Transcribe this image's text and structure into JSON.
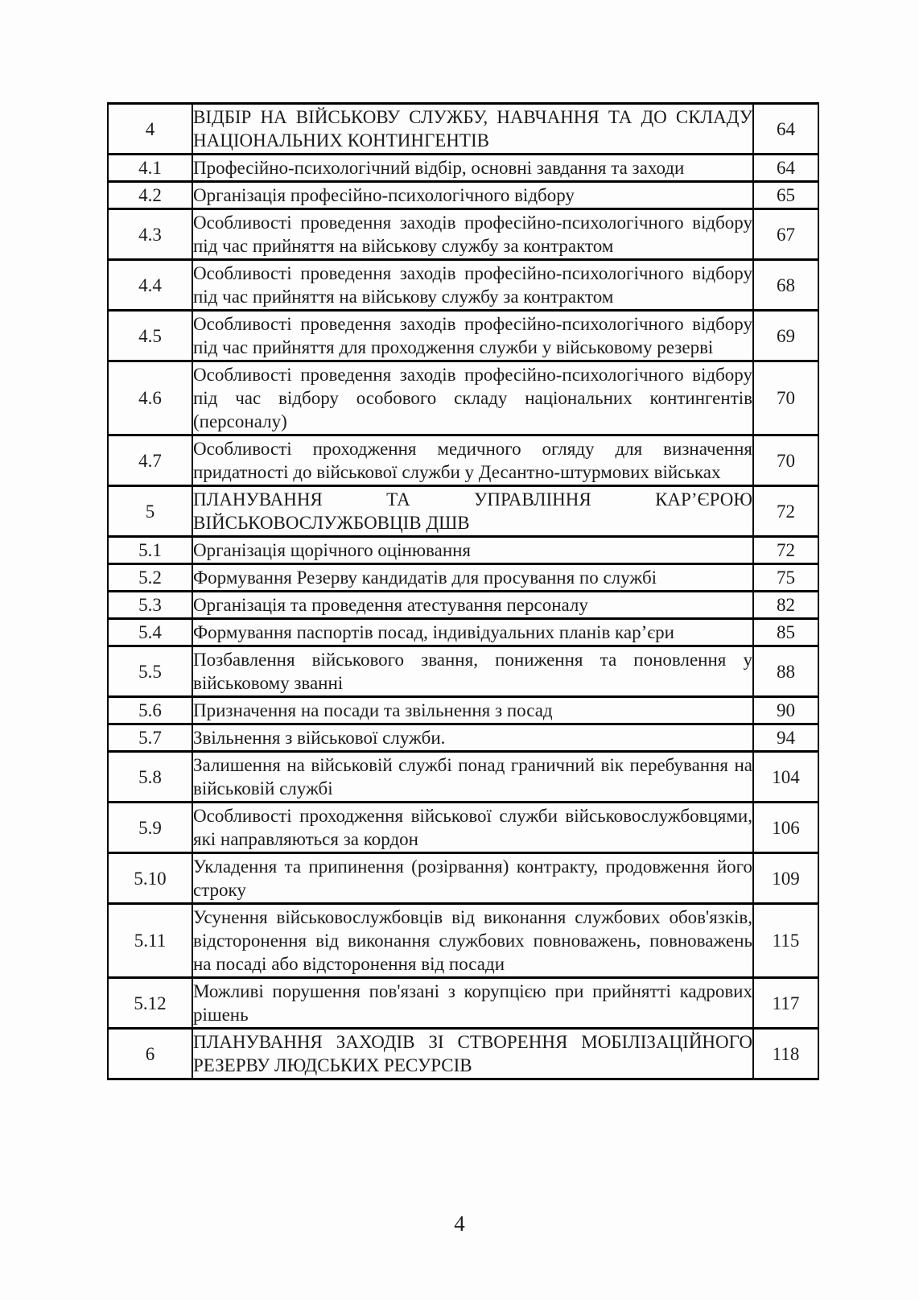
{
  "table": {
    "rows": [
      {
        "num": "4",
        "title": "ВІДБІР НА ВІЙСЬКОВУ СЛУЖБУ, НАВЧАННЯ ТА ДО СКЛАДУ НАЦІОНАЛЬНИХ КОНТИНГЕНТІВ",
        "page": "64"
      },
      {
        "num": "4.1",
        "title": "Професійно-психологічний відбір, основні завдання та заходи",
        "page": "64"
      },
      {
        "num": "4.2",
        "title": "Організація професійно-психологічного відбору",
        "page": "65"
      },
      {
        "num": "4.3",
        "title": "Особливості проведення заходів професійно-психологічного відбору під час прийняття на військову службу за контрактом",
        "page": "67"
      },
      {
        "num": "4.4",
        "title": "Особливості проведення заходів професійно-психологічного відбору під час прийняття на військову службу за контрактом",
        "page": "68"
      },
      {
        "num": "4.5",
        "title": "Особливості проведення заходів професійно-психологічного відбору під час прийняття для проходження служби у військовому резерві",
        "page": "69"
      },
      {
        "num": "4.6",
        "title": "Особливості проведення заходів професійно-психологічного відбору під час відбору особового складу національних контингентів (персоналу)",
        "page": "70"
      },
      {
        "num": "4.7",
        "title": "Особливості проходження медичного огляду для визначення придатності до військової служби у Десантно-штурмових військах",
        "page": "70"
      },
      {
        "num": "5",
        "title": "ПЛАНУВАННЯ ТА УПРАВЛІННЯ КАР’ЄРОЮ ВІЙСЬКОВОСЛУЖБОВЦІВ ДШВ",
        "page": "72"
      },
      {
        "num": "5.1",
        "title": "Організація щорічного оцінювання",
        "page": "72"
      },
      {
        "num": "5.2",
        "title": "Формування Резерву кандидатів для просування по службі",
        "page": "75"
      },
      {
        "num": "5.3",
        "title": "Організація та проведення атестування персоналу",
        "page": "82"
      },
      {
        "num": "5.4",
        "title": "Формування паспортів посад, індивідуальних планів кар’єри",
        "page": "85"
      },
      {
        "num": "5.5",
        "title": "Позбавлення військового звання, пониження та поновлення у військовому званні",
        "page": "88"
      },
      {
        "num": "5.6",
        "title": "Призначення на посади та звільнення з посад",
        "page": "90"
      },
      {
        "num": "5.7",
        "title": "Звільнення з військової служби.",
        "page": "94"
      },
      {
        "num": "5.8",
        "title": "Залишення на військовій службі понад граничний вік перебування на військовій службі",
        "page": "104"
      },
      {
        "num": "5.9",
        "title": "Особливості проходження військової служби військовослужбовцями, які направляються за кордон",
        "page": "106"
      },
      {
        "num": "5.10",
        "title": "Укладення та припинення (розірвання) контракту, продовження його строку",
        "page": "109"
      },
      {
        "num": "5.11",
        "title": "Усунення військовослужбовців від виконання службових обов'язків, відсторонення від виконання службових повноважень, повноважень на посаді або відсторонення від посади",
        "page": "115"
      },
      {
        "num": "5.12",
        "title": "Можливі порушення пов'язані з корупцією при прийнятті кадрових рішень",
        "page": "117"
      },
      {
        "num": "6",
        "title": "ПЛАНУВАННЯ ЗАХОДІВ ЗІ СТВОРЕННЯ МОБІЛІЗАЦІЙНОГО РЕЗЕРВУ ЛЮДСЬКИХ РЕСУРСІВ",
        "page": "118"
      }
    ]
  },
  "footer": {
    "page_number": "4"
  },
  "colors": {
    "text": "#1c1c1c",
    "border": "#000000",
    "background": "#fdfdfd"
  }
}
